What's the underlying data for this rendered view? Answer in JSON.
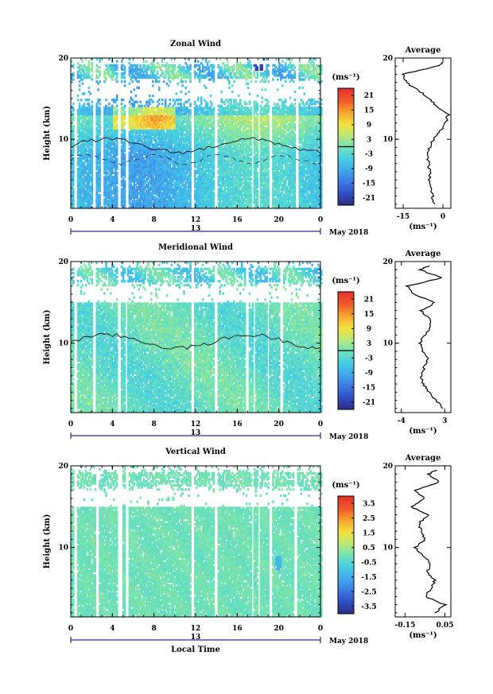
{
  "chart_data": [
    {
      "type": "heatmap",
      "title": "Zonal Wind",
      "ylabel": "Height (km)",
      "xlabel": "",
      "date_label": "13",
      "month_label": "May 2018",
      "unit_label": "(ms⁻¹)",
      "x_ticks": [
        "0",
        "4",
        "8",
        "12",
        "16",
        "20",
        "0"
      ],
      "y_ticks": [
        "10",
        "20"
      ],
      "colorbar_ticks": [
        "21",
        "15",
        "9",
        "3",
        "-3",
        "-9",
        "-15",
        "-21"
      ],
      "colorbar_range": [
        -24,
        24
      ],
      "x_range_hours": [
        0,
        24
      ],
      "y_range_km": [
        1.5,
        20
      ],
      "data_gaps_hours": [
        [
          0.2,
          0.6
        ],
        [
          2.0,
          2.3
        ],
        [
          2.7,
          3.0
        ],
        [
          4.5,
          4.8
        ],
        [
          5.2,
          5.5
        ],
        [
          11.5,
          11.8
        ],
        [
          13.8,
          14.1
        ],
        [
          17.3,
          17.5
        ],
        [
          17.9,
          18.1
        ],
        [
          19.0,
          19.3
        ],
        [
          21.5,
          21.8
        ]
      ],
      "contour_level": 0,
      "average_profile": {
        "title": "Average",
        "x_ticks": [
          "-15",
          "0"
        ],
        "x_range": [
          -18,
          3
        ],
        "xlabel": "(ms⁻¹)",
        "heights_km": [
          2,
          3,
          4,
          5,
          6,
          7,
          8,
          9,
          10,
          11,
          12,
          13,
          14,
          15,
          16,
          17,
          18,
          19,
          19.5
        ],
        "values": [
          -3,
          -4,
          -4.5,
          -5,
          -5,
          -5.5,
          -5.5,
          -5,
          -3.5,
          -1,
          1,
          2,
          -2,
          -5,
          -9,
          -14,
          -15,
          -2,
          0
        ]
      }
    },
    {
      "type": "heatmap",
      "title": "Meridional Wind",
      "ylabel": "Height (km)",
      "xlabel": "",
      "date_label": "13",
      "month_label": "May 2018",
      "unit_label": "(ms⁻¹)",
      "x_ticks": [
        "0",
        "4",
        "8",
        "12",
        "16",
        "20",
        "0"
      ],
      "y_ticks": [
        "10",
        "20"
      ],
      "colorbar_ticks": [
        "21",
        "15",
        "9",
        "3",
        "-3",
        "-9",
        "-15",
        "-21"
      ],
      "colorbar_range": [
        -24,
        24
      ],
      "x_range_hours": [
        0,
        24
      ],
      "y_range_km": [
        1.5,
        20
      ],
      "data_gaps_hours": [
        [
          0.2,
          0.5
        ],
        [
          2.0,
          2.3
        ],
        [
          4.5,
          4.8
        ],
        [
          5.2,
          5.4
        ],
        [
          11.5,
          11.8
        ],
        [
          13.8,
          14.1
        ],
        [
          16.8,
          17.0
        ],
        [
          17.5,
          17.7
        ],
        [
          18.8,
          19.0
        ],
        [
          20.0,
          20.3
        ]
      ],
      "contour_level": 0,
      "average_profile": {
        "title": "Average",
        "x_ticks": [
          "-4",
          "3"
        ],
        "x_range": [
          -5,
          4
        ],
        "xlabel": "(ms⁻¹)",
        "heights_km": [
          2,
          3,
          4,
          5,
          6,
          7,
          8,
          9,
          10,
          11,
          12,
          13,
          14,
          15,
          16,
          17,
          18,
          19,
          19.5
        ],
        "values": [
          2.8,
          1.5,
          0.5,
          -0.5,
          -0.8,
          -0.3,
          0.3,
          -0.5,
          -1,
          -0.3,
          0.8,
          0.5,
          -0.8,
          1.5,
          -2,
          -3,
          2.5,
          -1,
          0.5
        ]
      }
    },
    {
      "type": "heatmap",
      "title": "Vertical Wind",
      "ylabel": "Height (km)",
      "xlabel": "Local Time",
      "date_label": "13",
      "month_label": "May 2018",
      "unit_label": "(ms⁻¹)",
      "x_ticks": [
        "0",
        "4",
        "8",
        "12",
        "16",
        "20",
        "0"
      ],
      "y_ticks": [
        "10",
        "20"
      ],
      "colorbar_ticks": [
        "3.5",
        "2.5",
        "1.5",
        "0.5",
        "-0.5",
        "-1.5",
        "-2.5",
        "-3.5"
      ],
      "colorbar_range": [
        -4,
        4
      ],
      "x_range_hours": [
        0,
        24
      ],
      "y_range_km": [
        1.5,
        20
      ],
      "data_gaps_hours": [
        [
          0.2,
          0.5
        ],
        [
          2.3,
          2.6
        ],
        [
          4.5,
          4.9
        ],
        [
          5.2,
          5.5
        ],
        [
          11.5,
          11.8
        ],
        [
          13.8,
          14.0
        ],
        [
          17.3,
          17.5
        ],
        [
          17.9,
          18.1
        ],
        [
          19.0,
          19.2
        ],
        [
          21.3,
          21.6
        ]
      ],
      "average_profile": {
        "title": "Average",
        "x_ticks": [
          "-0.15",
          "0.05"
        ],
        "x_range": [
          -0.2,
          0.08
        ],
        "xlabel": "(ms⁻¹)",
        "heights_km": [
          2,
          3,
          4,
          5,
          6,
          7,
          8,
          9,
          10,
          11,
          12,
          13,
          14,
          15,
          16,
          17,
          18,
          19,
          19.5
        ],
        "values": [
          0.0,
          0.05,
          -0.05,
          -0.02,
          0.0,
          -0.04,
          -0.02,
          -0.06,
          -0.1,
          -0.05,
          -0.07,
          -0.08,
          -0.03,
          -0.12,
          -0.05,
          -0.1,
          0.02,
          -0.03,
          0.01
        ]
      }
    }
  ]
}
